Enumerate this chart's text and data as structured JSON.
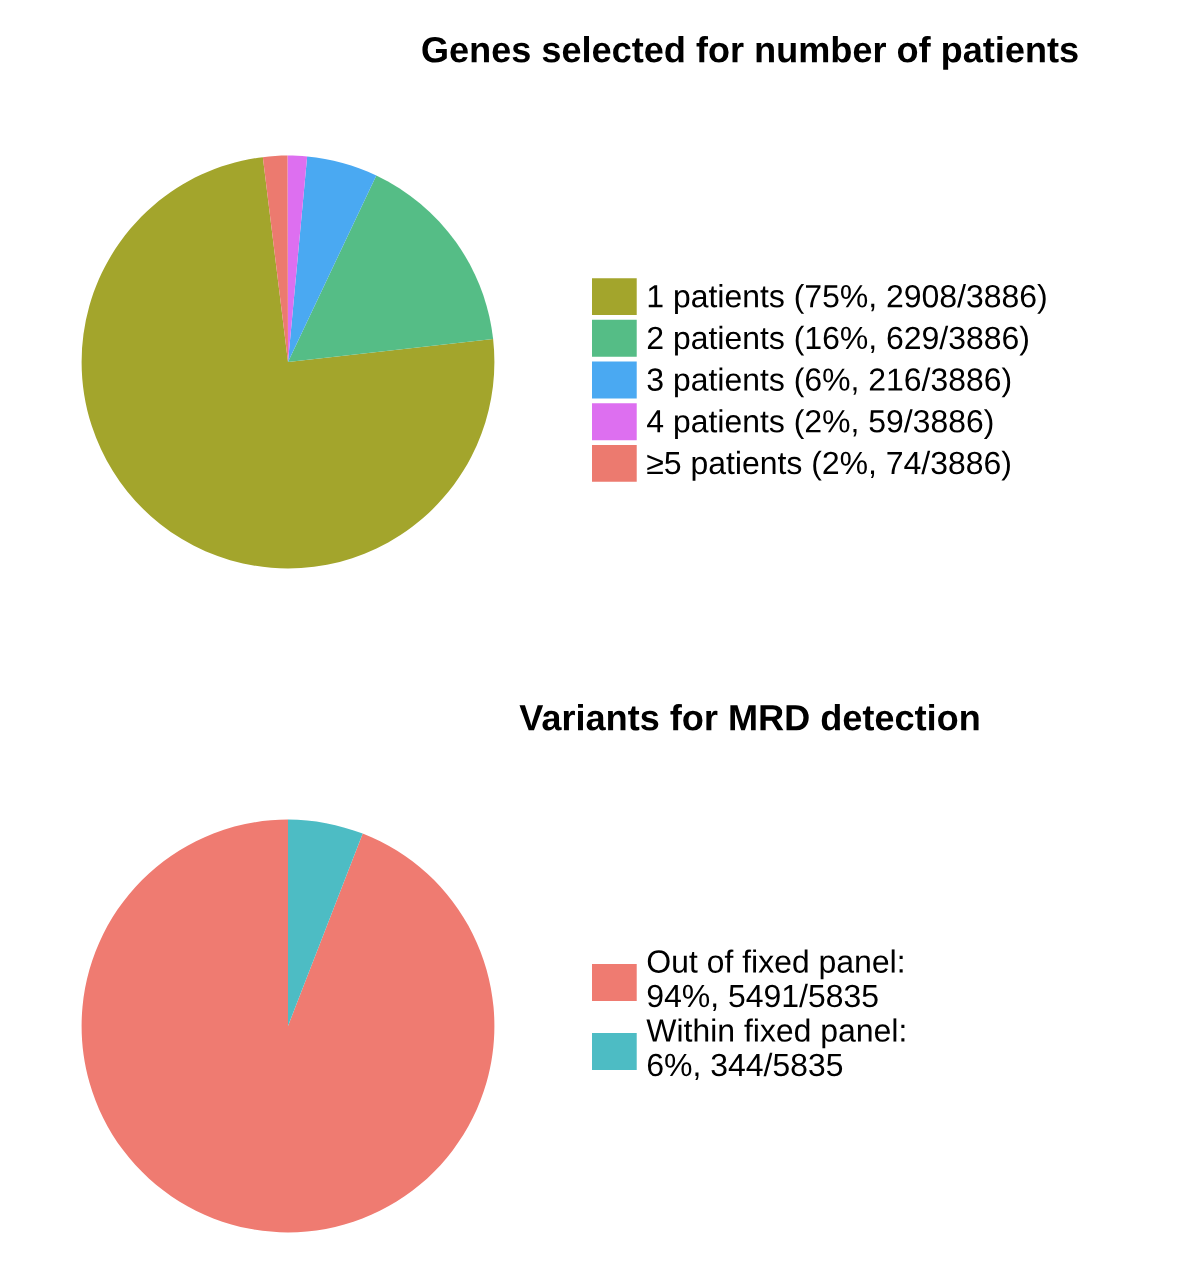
{
  "chart_data": [
    {
      "type": "pie",
      "title": "Genes selected for number of patients",
      "categories": [
        "1 patients (75%, 2908/3886)",
        "2 patients (16%, 629/3886)",
        "3 patients (6%, 216/3886)",
        "4 patients (2%, 59/3886)",
        "≥5 patients (2%, 74/3886)"
      ],
      "values": [
        2908,
        629,
        216,
        59,
        74
      ],
      "colors": [
        "#a3a52c",
        "#55bd86",
        "#4aa9f2",
        "#dd6ff0",
        "#ec7a6f"
      ],
      "legend": "right"
    },
    {
      "type": "pie",
      "title": "Variants for MRD detection",
      "categories": [
        "Out of fixed panel:\n94%, 5491/5835",
        "Within fixed panel:\n6%, 344/5835"
      ],
      "values": [
        5491,
        344
      ],
      "colors": [
        "#ef7b71",
        "#4dbcc4"
      ],
      "legend": "right"
    }
  ]
}
